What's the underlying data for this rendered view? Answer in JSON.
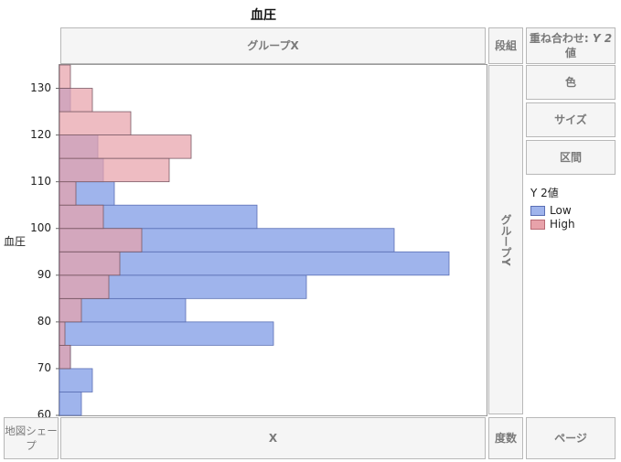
{
  "chart_data": {
    "type": "bar",
    "orientation": "horizontal",
    "title": "血圧",
    "ylabel": "血圧",
    "xlabel": "X",
    "ylim": [
      60,
      135
    ],
    "y_ticks": [
      60,
      70,
      80,
      90,
      100,
      110,
      120,
      130
    ],
    "bin_width": 5,
    "bins": [
      60,
      65,
      70,
      75,
      80,
      85,
      90,
      95,
      100,
      105,
      110,
      115,
      120,
      125,
      130
    ],
    "legend_title": "Y 2値",
    "legend_placement": "right",
    "grid": false,
    "series": [
      {
        "name": "Low",
        "color": "#9fb4ec",
        "border": "#5a6fb5",
        "values": [
          2,
          3,
          1,
          19.5,
          11.5,
          22.5,
          35.5,
          30.5,
          18,
          5,
          4,
          3.5,
          0,
          1,
          0
        ]
      },
      {
        "name": "High",
        "color": "#e8a2aa",
        "border": "#b86a74",
        "values": [
          0,
          0,
          1,
          0.5,
          2,
          4.5,
          5.5,
          7.5,
          4,
          1.5,
          10,
          12,
          6.5,
          3,
          1
        ]
      }
    ]
  },
  "zones": {
    "group_x": "グループX",
    "wrap": "段組",
    "overlay": "重ね合わせ: Y 2値",
    "overlay_line1": "重ね合わせ:",
    "overlay_line1b": "Y 2",
    "overlay_line2": "値",
    "color": "色",
    "size": "サイズ",
    "interval": "区間",
    "group_y": "グループY",
    "map_shape": "地図シェープ",
    "map_shape_l1": "地図シェー",
    "map_shape_l2": "プ",
    "x": "X",
    "freq": "度数",
    "page": "ページ"
  }
}
